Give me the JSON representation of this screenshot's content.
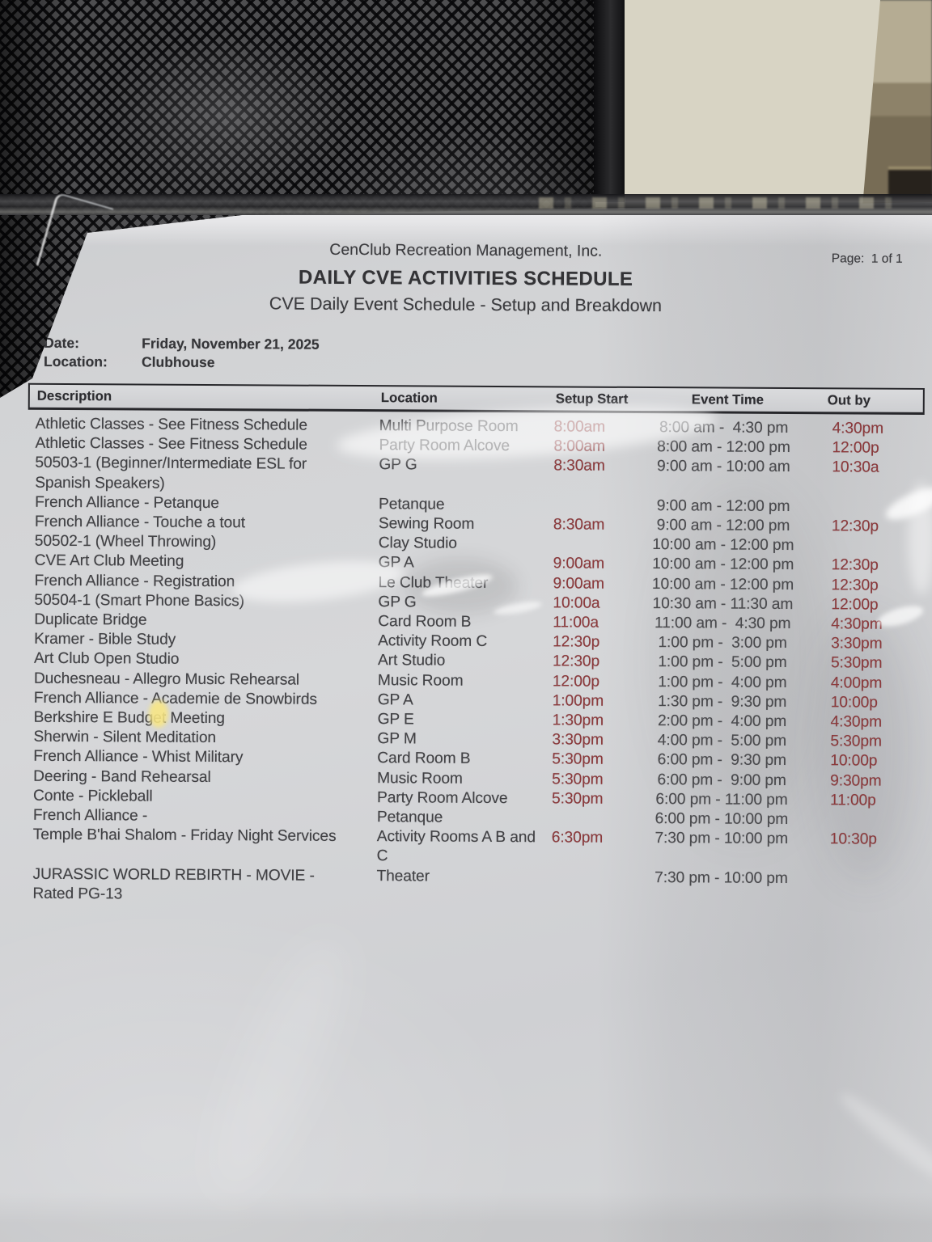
{
  "colors": {
    "paper": "#d3d4d6",
    "ink": "#3f3f42",
    "time_red": "#8d393b",
    "event_gray": "#4a4a4d",
    "mesh_dark": "#1c1c1e",
    "wall_stucco": "#d8d4c4"
  },
  "document": {
    "header": {
      "company": "CenClub Recreation Management, Inc.",
      "page_label": "Page:  1 of 1",
      "title": "DAILY CVE ACTIVITIES SCHEDULE",
      "subtitle": "CVE Daily Event Schedule - Setup and Breakdown"
    },
    "meta": {
      "date_label": "Date:",
      "date_value": "Friday, November 21, 2025",
      "location_label": "Location:",
      "location_value": "Clubhouse"
    },
    "table": {
      "columns": [
        "Description",
        "Location",
        "Setup Start",
        "Event Time",
        "Out by"
      ],
      "rows": [
        {
          "description": "Athletic Classes - See Fitness Schedule",
          "location": "Multi Purpose Room",
          "setup": "8:00am",
          "event": "8:00 am -  4:30 pm",
          "out": "4:30pm"
        },
        {
          "description": "Athletic Classes - See Fitness Schedule",
          "location": "Party Room Alcove",
          "setup": "8:00am",
          "event": "8:00 am - 12:00 pm",
          "out": "12:00p"
        },
        {
          "description": "50503-1 (Beginner/Intermediate ESL for Spanish Speakers)",
          "location": "GP G",
          "setup": "8:30am",
          "event": "9:00 am - 10:00 am",
          "out": "10:30a"
        },
        {
          "description": "French Alliance - Petanque",
          "location": "Petanque",
          "setup": "",
          "event": "9:00 am - 12:00 pm",
          "out": ""
        },
        {
          "description": "French Alliance - Touche a tout",
          "location": "Sewing Room",
          "setup": "8:30am",
          "event": "9:00 am - 12:00 pm",
          "out": "12:30p"
        },
        {
          "description": "50502-1 (Wheel Throwing)",
          "location": "Clay Studio",
          "setup": "",
          "event": "10:00 am - 12:00 pm",
          "out": ""
        },
        {
          "description": "CVE Art Club Meeting",
          "location": "GP A",
          "setup": "9:00am",
          "event": "10:00 am - 12:00 pm",
          "out": "12:30p"
        },
        {
          "description": "French Alliance - Registration",
          "location": "Le Club Theater",
          "setup": "9:00am",
          "event": "10:00 am - 12:00 pm",
          "out": "12:30p"
        },
        {
          "description": "50504-1 (Smart Phone Basics)",
          "location": "GP G",
          "setup": "10:00a",
          "event": "10:30 am - 11:30 am",
          "out": "12:00p"
        },
        {
          "description": "Duplicate Bridge",
          "location": "Card Room B",
          "setup": "11:00a",
          "event": "11:00 am -  4:30 pm",
          "out": "4:30pm"
        },
        {
          "description": "Kramer - Bible Study",
          "location": "Activity Room C",
          "setup": "12:30p",
          "event": "1:00 pm -  3:00 pm",
          "out": "3:30pm"
        },
        {
          "description": "Art Club Open Studio",
          "location": "Art Studio",
          "setup": "12:30p",
          "event": "1:00 pm -  5:00 pm",
          "out": "5:30pm"
        },
        {
          "description": "Duchesneau - Allegro Music Rehearsal",
          "location": "Music Room",
          "setup": "12:00p",
          "event": "1:00 pm -  4:00 pm",
          "out": "4:00pm"
        },
        {
          "description": "French Alliance - Academie de Snowbirds",
          "location": "GP A",
          "setup": "1:00pm",
          "event": "1:30 pm -  9:30 pm",
          "out": "10:00p"
        },
        {
          "description": "Berkshire E Budget Meeting",
          "location": "GP E",
          "setup": "1:30pm",
          "event": "2:00 pm -  4:00 pm",
          "out": "4:30pm"
        },
        {
          "description": "Sherwin - Silent Meditation",
          "location": "GP M",
          "setup": "3:30pm",
          "event": "4:00 pm -  5:00 pm",
          "out": "5:30pm"
        },
        {
          "description": "French Alliance - Whist Military",
          "location": "Card Room B",
          "setup": "5:30pm",
          "event": "6:00 pm -  9:30 pm",
          "out": "10:00p"
        },
        {
          "description": "Deering - Band Rehearsal",
          "location": "Music Room",
          "setup": "5:30pm",
          "event": "6:00 pm -  9:00 pm",
          "out": "9:30pm"
        },
        {
          "description": "Conte - Pickleball",
          "location": "Party Room Alcove",
          "setup": "5:30pm",
          "event": "6:00 pm - 11:00 pm",
          "out": "11:00p"
        },
        {
          "description": "French Alliance -",
          "location": "Petanque",
          "setup": "",
          "event": "6:00 pm - 10:00 pm",
          "out": ""
        },
        {
          "description": "Temple B'hai Shalom - Friday Night Services",
          "location": "Activity Rooms A B and C",
          "setup": "6:30pm",
          "event": "7:30 pm - 10:00 pm",
          "out": "10:30p"
        },
        {
          "description": "JURASSIC WORLD REBIRTH - MOVIE - Rated PG-13",
          "location": "Theater",
          "setup": "",
          "event": "7:30 pm - 10:00 pm",
          "out": ""
        }
      ]
    }
  }
}
